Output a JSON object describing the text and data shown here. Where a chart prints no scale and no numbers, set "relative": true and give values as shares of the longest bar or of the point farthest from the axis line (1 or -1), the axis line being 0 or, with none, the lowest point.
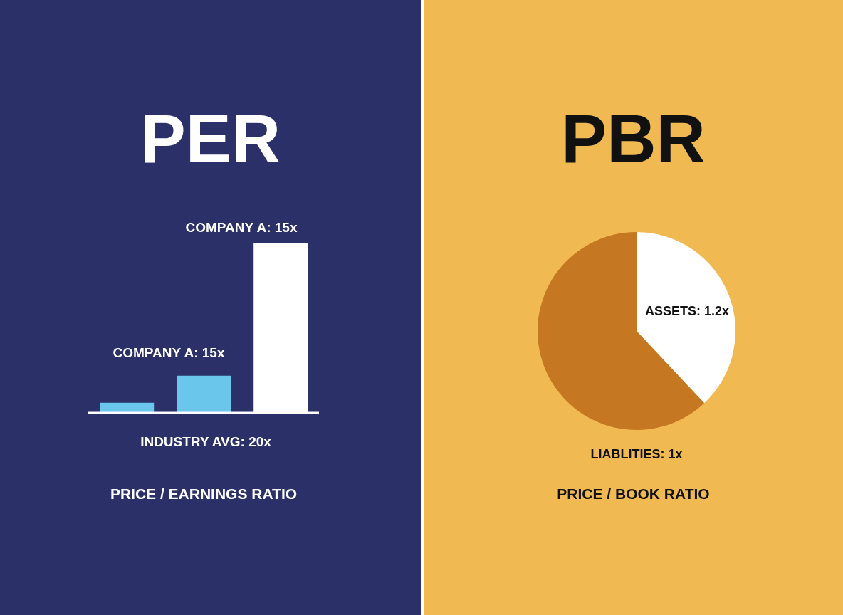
{
  "chart_data": [
    {
      "type": "bar",
      "title": "PER",
      "categories": [
        null,
        null,
        null
      ],
      "relative": true,
      "values": [
        0.06,
        0.22,
        1
      ],
      "colors": [
        "#6ac6ea",
        "#6ac6ea",
        "#ffffff"
      ],
      "annotations": [
        "COMPANY A: 15x",
        "COMPANY A: 15x",
        "INDUSTRY AVG: 20x",
        "PRICE / EARNINGS RATIO"
      ]
    },
    {
      "type": "pie",
      "title": "PBR",
      "categories": [
        "ASSETS: 1.2x",
        "LIABLITIES: 1x"
      ],
      "values": [
        38,
        62
      ],
      "colors": [
        "#ffffff",
        "#c57722"
      ],
      "annotations": [
        "PRICE / BOOK RATIO"
      ]
    }
  ]
}
